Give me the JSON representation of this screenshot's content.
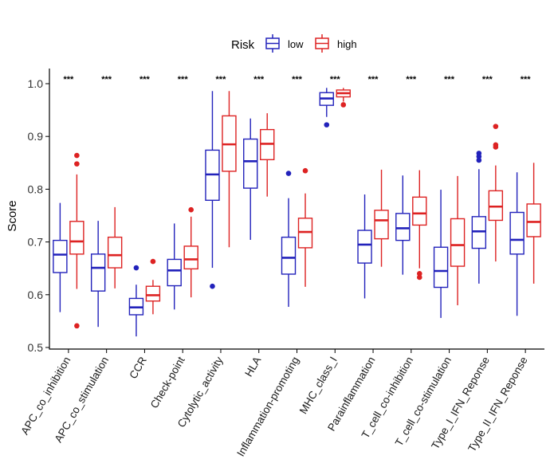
{
  "chart_data": {
    "type": "boxplot",
    "title": "",
    "xlabel": "",
    "ylabel": "Score",
    "ylim": [
      0.5,
      1.0
    ],
    "yticks": [
      0.5,
      0.6,
      0.7,
      0.8,
      0.9,
      1.0
    ],
    "ytick_labels": [
      "0.5",
      "0.6",
      "0.7",
      "0.8",
      "0.9",
      "1.0"
    ],
    "legend": {
      "title": "Risk",
      "position": "top",
      "entries": [
        {
          "name": "low",
          "color": "#2222bb"
        },
        {
          "name": "high",
          "color": "#dd2222"
        }
      ]
    },
    "categories": [
      "APC_co_inhibition",
      "APC_co_stimulation",
      "CCR",
      "Check-point",
      "Cytolytic_activity",
      "HLA",
      "Inflammation-promoting",
      "MHC_class_I",
      "Parainflammation",
      "T_cell_co-inhibition",
      "T_cell_co-stimulation",
      "Type_I_IFN_Reponse",
      "Type_II_IFN_Reponse"
    ],
    "significance": [
      "***",
      "***",
      "***",
      "***",
      "***",
      "***",
      "***",
      "***",
      "***",
      "***",
      "***",
      "***",
      "***"
    ],
    "series": [
      {
        "name": "low",
        "color": "#2222bb",
        "boxes": [
          {
            "lo": 0.567,
            "q1": 0.642,
            "med": 0.676,
            "q3": 0.703,
            "hi": 0.774,
            "outliers": []
          },
          {
            "lo": 0.539,
            "q1": 0.607,
            "med": 0.651,
            "q3": 0.677,
            "hi": 0.74,
            "outliers": []
          },
          {
            "lo": 0.521,
            "q1": 0.562,
            "med": 0.576,
            "q3": 0.593,
            "hi": 0.619,
            "outliers": [
              0.651
            ]
          },
          {
            "lo": 0.572,
            "q1": 0.617,
            "med": 0.646,
            "q3": 0.667,
            "hi": 0.735,
            "outliers": []
          },
          {
            "lo": 0.651,
            "q1": 0.779,
            "med": 0.828,
            "q3": 0.874,
            "hi": 0.986,
            "outliers": [
              0.616
            ]
          },
          {
            "lo": 0.704,
            "q1": 0.802,
            "med": 0.853,
            "q3": 0.895,
            "hi": 0.934,
            "outliers": []
          },
          {
            "lo": 0.577,
            "q1": 0.639,
            "med": 0.67,
            "q3": 0.709,
            "hi": 0.783,
            "outliers": [
              0.83
            ]
          },
          {
            "lo": 0.937,
            "q1": 0.959,
            "med": 0.972,
            "q3": 0.983,
            "hi": 0.992,
            "outliers": [
              0.922
            ]
          },
          {
            "lo": 0.593,
            "q1": 0.66,
            "med": 0.695,
            "q3": 0.722,
            "hi": 0.79,
            "outliers": []
          },
          {
            "lo": 0.638,
            "q1": 0.703,
            "med": 0.726,
            "q3": 0.754,
            "hi": 0.826,
            "outliers": []
          },
          {
            "lo": 0.556,
            "q1": 0.614,
            "med": 0.645,
            "q3": 0.69,
            "hi": 0.799,
            "outliers": []
          },
          {
            "lo": 0.621,
            "q1": 0.688,
            "med": 0.72,
            "q3": 0.748,
            "hi": 0.838,
            "outliers": [
              0.855,
              0.862,
              0.868
            ]
          },
          {
            "lo": 0.56,
            "q1": 0.677,
            "med": 0.704,
            "q3": 0.756,
            "hi": 0.832,
            "outliers": []
          }
        ]
      },
      {
        "name": "high",
        "color": "#dd2222",
        "boxes": [
          {
            "lo": 0.611,
            "q1": 0.677,
            "med": 0.701,
            "q3": 0.739,
            "hi": 0.828,
            "outliers": [
              0.541,
              0.848,
              0.864
            ]
          },
          {
            "lo": 0.612,
            "q1": 0.651,
            "med": 0.675,
            "q3": 0.709,
            "hi": 0.766,
            "outliers": []
          },
          {
            "lo": 0.563,
            "q1": 0.588,
            "med": 0.599,
            "q3": 0.616,
            "hi": 0.628,
            "outliers": [
              0.663
            ]
          },
          {
            "lo": 0.595,
            "q1": 0.649,
            "med": 0.667,
            "q3": 0.692,
            "hi": 0.748,
            "outliers": [
              0.761
            ]
          },
          {
            "lo": 0.69,
            "q1": 0.834,
            "med": 0.885,
            "q3": 0.939,
            "hi": 0.986,
            "outliers": []
          },
          {
            "lo": 0.786,
            "q1": 0.856,
            "med": 0.886,
            "q3": 0.913,
            "hi": 0.944,
            "outliers": []
          },
          {
            "lo": 0.615,
            "q1": 0.689,
            "med": 0.719,
            "q3": 0.745,
            "hi": 0.792,
            "outliers": [
              0.835
            ]
          },
          {
            "lo": 0.966,
            "q1": 0.975,
            "med": 0.982,
            "q3": 0.988,
            "hi": 0.992,
            "outliers": [
              0.96
            ]
          },
          {
            "lo": 0.653,
            "q1": 0.706,
            "med": 0.741,
            "q3": 0.76,
            "hi": 0.837,
            "outliers": []
          },
          {
            "lo": 0.65,
            "q1": 0.732,
            "med": 0.754,
            "q3": 0.785,
            "hi": 0.836,
            "outliers": [
              0.633,
              0.64
            ]
          },
          {
            "lo": 0.58,
            "q1": 0.654,
            "med": 0.694,
            "q3": 0.744,
            "hi": 0.825,
            "outliers": []
          },
          {
            "lo": 0.663,
            "q1": 0.741,
            "med": 0.767,
            "q3": 0.797,
            "hi": 0.845,
            "outliers": [
              0.88,
              0.884,
              0.919
            ]
          },
          {
            "lo": 0.621,
            "q1": 0.71,
            "med": 0.738,
            "q3": 0.772,
            "hi": 0.85,
            "outliers": []
          }
        ]
      }
    ]
  }
}
